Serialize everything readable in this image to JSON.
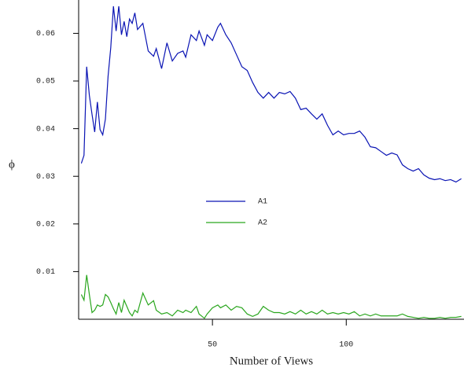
{
  "chart_data": {
    "type": "line",
    "x_label": "Number of Views",
    "y_label": "ϕ",
    "x": [
      1,
      2,
      3,
      4,
      5,
      6,
      7,
      8,
      9,
      10,
      11,
      12,
      13,
      14,
      15,
      16,
      17,
      18,
      19,
      20,
      21,
      22,
      24,
      26,
      28,
      29,
      31,
      33,
      35,
      37,
      39,
      40,
      42,
      44,
      45,
      47,
      48,
      50,
      52,
      53,
      55,
      57,
      59,
      61,
      63,
      65,
      67,
      69,
      71,
      73,
      75,
      77,
      79,
      81,
      83,
      85,
      87,
      89,
      91,
      93,
      95,
      97,
      99,
      101,
      103,
      105,
      107,
      109,
      111,
      113,
      115,
      117,
      119,
      121,
      123,
      125,
      127,
      129,
      131,
      133,
      135,
      137,
      139,
      141,
      143
    ],
    "series": [
      {
        "name": "A1",
        "color": "#0a14b4",
        "values": [
          0.0327,
          0.0344,
          0.053,
          0.047,
          0.043,
          0.0393,
          0.0456,
          0.0398,
          0.0387,
          0.042,
          0.051,
          0.057,
          0.0657,
          0.0605,
          0.0657,
          0.0597,
          0.0625,
          0.0593,
          0.063,
          0.0621,
          0.0643,
          0.0608,
          0.0621,
          0.0563,
          0.0552,
          0.0568,
          0.0526,
          0.058,
          0.0542,
          0.0558,
          0.0563,
          0.055,
          0.0597,
          0.0585,
          0.0605,
          0.0575,
          0.0597,
          0.0585,
          0.0613,
          0.0621,
          0.0597,
          0.058,
          0.0555,
          0.053,
          0.0522,
          0.0497,
          0.0476,
          0.0464,
          0.0476,
          0.0464,
          0.0476,
          0.0473,
          0.0478,
          0.0464,
          0.044,
          0.0443,
          0.0431,
          0.042,
          0.0431,
          0.0407,
          0.0387,
          0.0395,
          0.0387,
          0.039,
          0.039,
          0.0395,
          0.0382,
          0.0362,
          0.036,
          0.0352,
          0.0344,
          0.0349,
          0.0345,
          0.0324,
          0.0316,
          0.0311,
          0.0316,
          0.0303,
          0.0296,
          0.0293,
          0.0295,
          0.0291,
          0.0293,
          0.0288,
          0.0295
        ]
      },
      {
        "name": "A2",
        "color": "#2aa61e",
        "values": [
          0.0052,
          0.004,
          0.0093,
          0.0052,
          0.0014,
          0.0019,
          0.003,
          0.0027,
          0.003,
          0.0052,
          0.0047,
          0.0035,
          0.0022,
          0.0011,
          0.0035,
          0.0014,
          0.004,
          0.0027,
          0.0014,
          0.0007,
          0.0019,
          0.0014,
          0.0055,
          0.003,
          0.0039,
          0.0019,
          0.0011,
          0.0014,
          0.0007,
          0.0019,
          0.0014,
          0.0019,
          0.0014,
          0.0027,
          0.0011,
          0.0002,
          0.0011,
          0.0024,
          0.003,
          0.0024,
          0.003,
          0.0019,
          0.0027,
          0.0024,
          0.0011,
          0.0006,
          0.0011,
          0.0027,
          0.0019,
          0.0014,
          0.0014,
          0.0011,
          0.0016,
          0.0011,
          0.0019,
          0.0011,
          0.0016,
          0.0011,
          0.0019,
          0.0011,
          0.0014,
          0.0011,
          0.0014,
          0.0011,
          0.0016,
          0.0007,
          0.0011,
          0.0007,
          0.0011,
          0.0007,
          0.0007,
          0.0007,
          0.0007,
          0.0011,
          0.0006,
          0.0004,
          0.0002,
          0.0004,
          0.0002,
          0.0002,
          0.0004,
          0.0002,
          0.0004,
          0.0004,
          0.0006
        ]
      }
    ],
    "xlim": [
      0,
      144
    ],
    "xticks": [
      50,
      100
    ],
    "ylim": [
      0,
      0.067
    ],
    "yticks": [
      0.01,
      0.02,
      0.03,
      0.04,
      0.05,
      0.06
    ],
    "grid": false
  }
}
